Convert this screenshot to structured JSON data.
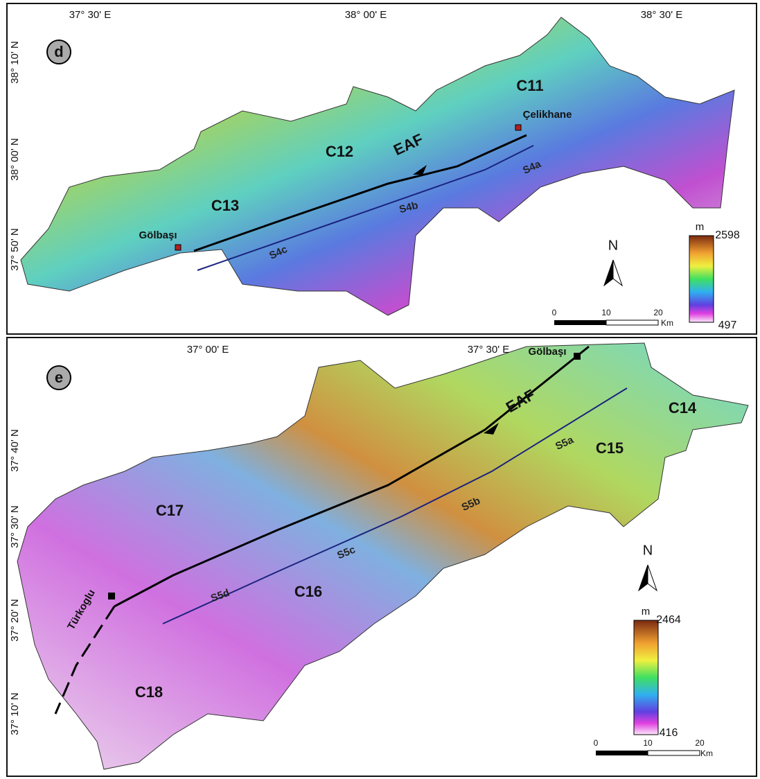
{
  "panels": [
    {
      "label": "d",
      "lon_labels": [
        "37° 30' E",
        "38° 00' E",
        "38° 30' E"
      ],
      "lat_labels": [
        "38° 10' N",
        "38° 00' N",
        "37° 50' N"
      ],
      "catchments": [
        "C11",
        "C12",
        "C13"
      ],
      "places": [
        "Çelikhane",
        "Gölbaşı"
      ],
      "fault": "EAF",
      "segments": [
        "S4a",
        "S4b",
        "S4c"
      ],
      "north": "N",
      "legend": {
        "unit": "m",
        "max": "2598",
        "min": "497"
      },
      "scale": {
        "ticks": [
          "0",
          "10",
          "20"
        ],
        "unit": "Km"
      }
    },
    {
      "label": "e",
      "lon_labels": [
        "37° 00' E",
        "37° 30' E"
      ],
      "lat_labels": [
        "37° 40' N",
        "37° 30' N",
        "37° 20' N",
        "37° 10' N"
      ],
      "catchments": [
        "C14",
        "C15",
        "C16",
        "C17",
        "C18"
      ],
      "places": [
        "Gölbaşı",
        "Türkoglu"
      ],
      "fault": "EAF",
      "segments": [
        "S5a",
        "S5b",
        "S5c",
        "S5d"
      ],
      "north": "N",
      "legend": {
        "unit": "m",
        "max": "2464",
        "min": "416"
      },
      "scale": {
        "ticks": [
          "0",
          "10",
          "20"
        ],
        "unit": "Km"
      }
    }
  ]
}
